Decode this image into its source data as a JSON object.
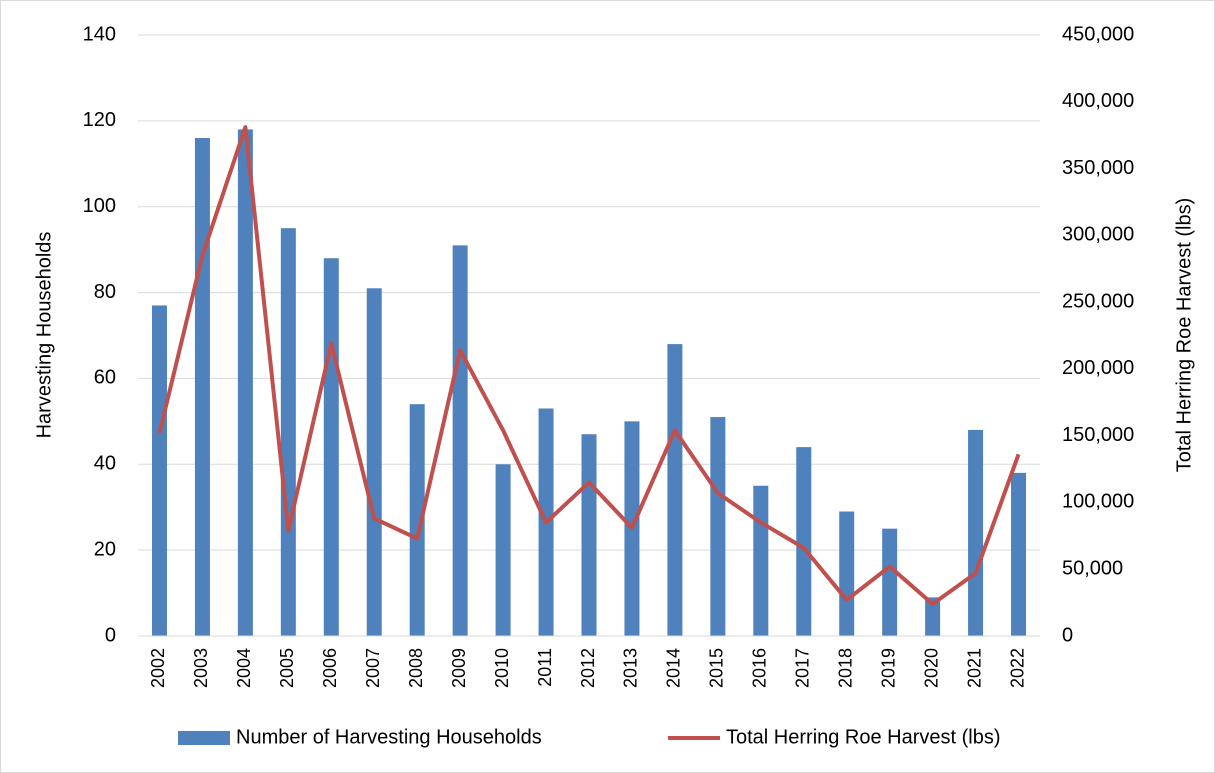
{
  "chart_data": {
    "type": "bar-line",
    "categories": [
      "2002",
      "2003",
      "2004",
      "2005",
      "2006",
      "2007",
      "2008",
      "2009",
      "2010",
      "2011",
      "2012",
      "2013",
      "2014",
      "2015",
      "2016",
      "2017",
      "2018",
      "2019",
      "2020",
      "2021",
      "2022"
    ],
    "series": [
      {
        "name": "Number of Harvesting Households",
        "type": "bar",
        "color": "#4f81bd",
        "axis": "y",
        "values": [
          77,
          116,
          118,
          95,
          88,
          81,
          54,
          91,
          40,
          53,
          47,
          50,
          68,
          51,
          35,
          44,
          29,
          25,
          9,
          48,
          38
        ]
      },
      {
        "name": "Total Herring Roe Harvest (lbs)",
        "type": "line",
        "color": "#c0504d",
        "axis": "y2",
        "values": [
          152000,
          285000,
          381000,
          79000,
          219000,
          88000,
          73000,
          214000,
          154000,
          85000,
          115000,
          81000,
          154000,
          107000,
          85000,
          66000,
          27000,
          52000,
          24000,
          47000,
          136000
        ]
      }
    ],
    "ylabel": "Harvesting Households",
    "y2label": "Total Herring Roe Harvest (lbs)",
    "ylim": [
      0,
      140
    ],
    "yticks": [
      0,
      20,
      40,
      60,
      80,
      100,
      120,
      140
    ],
    "y2lim": [
      0,
      450000
    ],
    "y2ticks": [
      0,
      {
        "value": 50000,
        "label": "50,000"
      },
      {
        "value": 100000,
        "label": "100,000"
      },
      {
        "value": 150000,
        "label": "150,000"
      },
      {
        "value": 200000,
        "label": "200,000"
      },
      {
        "value": 250000,
        "label": "250,000"
      },
      {
        "value": 300000,
        "label": "300,000"
      },
      {
        "value": 350000,
        "label": "350,000"
      },
      {
        "value": 400000,
        "label": "400,000"
      },
      {
        "value": 450000,
        "label": "450,000"
      }
    ],
    "grid": true,
    "legend": "bottom"
  }
}
